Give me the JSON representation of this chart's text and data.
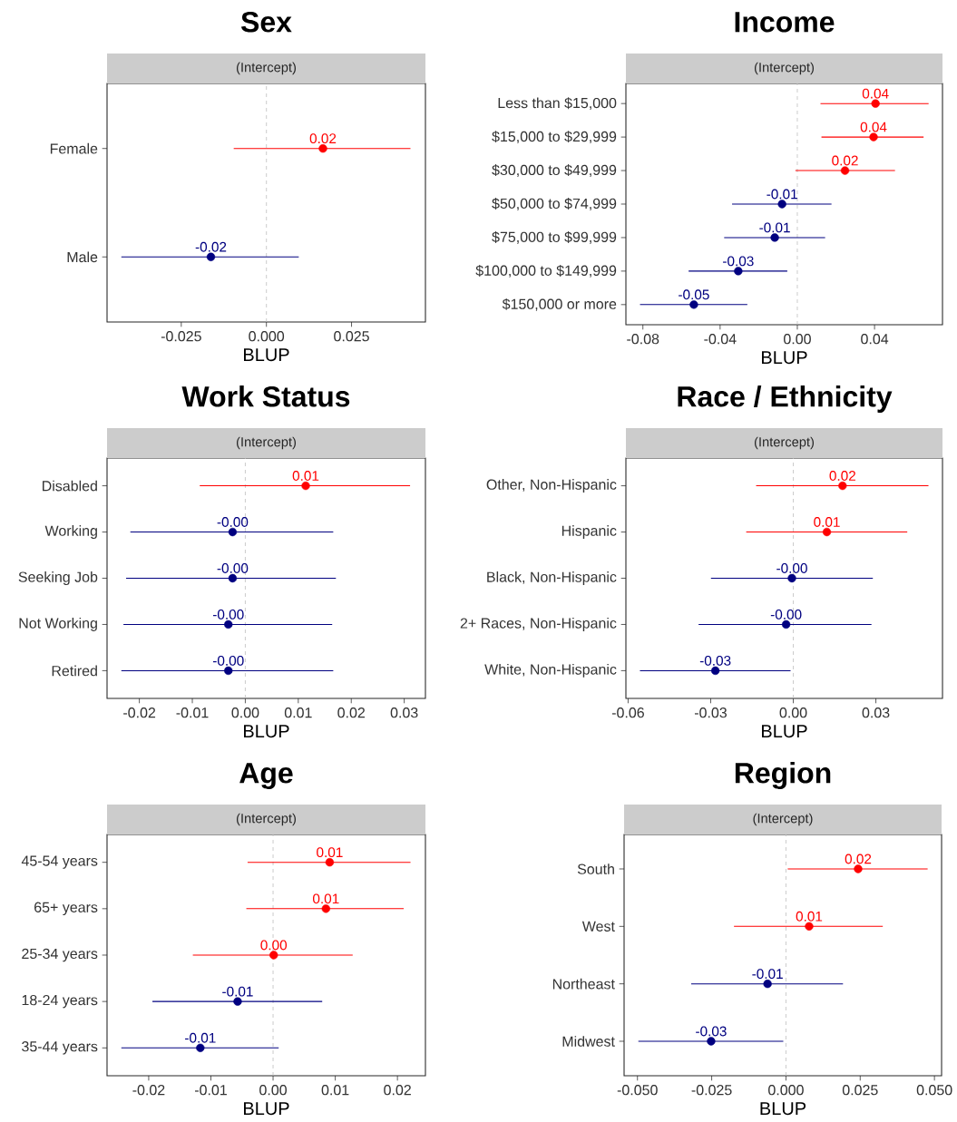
{
  "chart_data": [
    {
      "type": "scatter",
      "orientation": "horizontal",
      "title": "Sex",
      "subtitle": "(Intercept)",
      "xlabel": "BLUP",
      "marker": "circle",
      "categories": [
        "Female",
        "Male"
      ],
      "values": [
        0.0166,
        -0.0163
      ],
      "errors": [
        [
          -0.0096,
          0.0423
        ],
        [
          -0.0426,
          0.0095
        ]
      ],
      "colors": [
        "#ff0000",
        "#000080"
      ],
      "value_labels": [
        "0.02",
        "-0.02"
      ],
      "xlim": [
        -0.0468,
        0.0467
      ],
      "xticks": [
        -0.025,
        {
          "value": 0,
          "label": "0.000"
        },
        0.025
      ],
      "ref_lines": [
        {
          "axis": "x",
          "value": 0,
          "color": "#bebebe",
          "line_style": "dashed"
        }
      ]
    },
    {
      "type": "scatter",
      "orientation": "horizontal",
      "title": "Income",
      "subtitle": "(Intercept)",
      "xlabel": "BLUP",
      "marker": "circle",
      "categories": [
        "Less than $15,000",
        "$15,000 to $29,999",
        "$30,000 to $49,999",
        "$50,000 to $74,999",
        "$75,000 to $99,999",
        "$100,000 to $149,999",
        "$150,000 or more"
      ],
      "values": [
        0.0405,
        0.0395,
        0.0247,
        -0.0079,
        -0.0117,
        -0.0306,
        -0.0536
      ],
      "errors": [
        [
          0.012,
          0.068
        ],
        [
          0.0125,
          0.0654
        ],
        [
          -0.001,
          0.0506
        ],
        [
          -0.0338,
          0.0177
        ],
        [
          -0.0379,
          0.0144
        ],
        [
          -0.0563,
          -0.0052
        ],
        [
          -0.0815,
          -0.0259
        ]
      ],
      "colors": [
        "#ff0000",
        "#ff0000",
        "#ff0000",
        "#000080",
        "#000080",
        "#000080",
        "#000080"
      ],
      "value_labels": [
        "0.04",
        "0.04",
        "0.02",
        "-0.01",
        "-0.01",
        "-0.03",
        "-0.05"
      ],
      "xlim": [
        -0.0888,
        0.0752
      ],
      "xticks": [
        -0.08,
        -0.04,
        {
          "value": 0,
          "label": "0.00"
        },
        0.04
      ],
      "ref_lines": [
        {
          "axis": "x",
          "value": 0,
          "color": "#bebebe",
          "line_style": "dashed"
        }
      ]
    },
    {
      "type": "scatter",
      "orientation": "horizontal",
      "title": "Work Status",
      "subtitle": "(Intercept)",
      "xlabel": "BLUP",
      "marker": "circle",
      "categories": [
        "Disabled",
        "Working",
        "Seeking Job",
        "Not Working",
        "Retired"
      ],
      "values": [
        0.0114,
        -0.0024,
        -0.0024,
        -0.0032,
        -0.0032
      ],
      "errors": [
        [
          -0.0086,
          0.0311
        ],
        [
          -0.0217,
          0.0166
        ],
        [
          -0.0225,
          0.0171
        ],
        [
          -0.023,
          0.0164
        ],
        [
          -0.0234,
          0.0166
        ]
      ],
      "colors": [
        "#ff0000",
        "#000080",
        "#000080",
        "#000080",
        "#000080"
      ],
      "value_labels": [
        "0.01",
        "-0.00",
        "-0.00",
        "-0.00",
        "-0.00"
      ],
      "xlim": [
        -0.0261,
        0.034
      ],
      "xticks": [
        -0.02,
        -0.01,
        {
          "value": 0,
          "label": "0.00"
        },
        0.01,
        0.02,
        0.03
      ],
      "ref_lines": [
        {
          "axis": "x",
          "value": 0,
          "color": "#bebebe",
          "line_style": "dashed"
        }
      ]
    },
    {
      "type": "scatter",
      "orientation": "horizontal",
      "title": "Race / Ethnicity",
      "subtitle": "(Intercept)",
      "xlabel": "BLUP",
      "marker": "circle",
      "categories": [
        "Other, Non-Hispanic",
        "Hispanic",
        "Black, Non-Hispanic",
        "2+ Races, Non-Hispanic",
        "White, Non-Hispanic"
      ],
      "values": [
        0.0179,
        0.0122,
        -0.0005,
        -0.0026,
        -0.0283
      ],
      "errors": [
        [
          -0.0135,
          0.0491
        ],
        [
          -0.0171,
          0.0414
        ],
        [
          -0.0299,
          0.0289
        ],
        [
          -0.0344,
          0.0284
        ],
        [
          -0.0557,
          -0.001
        ]
      ],
      "colors": [
        "#ff0000",
        "#ff0000",
        "#000080",
        "#000080",
        "#000080"
      ],
      "value_labels": [
        "0.02",
        "0.01",
        "-0.00",
        "-0.00",
        "-0.03"
      ],
      "xlim": [
        -0.0608,
        0.0542
      ],
      "xticks": [
        -0.06,
        -0.03,
        {
          "value": 0,
          "label": "0.00"
        },
        0.03
      ],
      "ref_lines": [
        {
          "axis": "x",
          "value": 0,
          "color": "#bebebe",
          "line_style": "dashed"
        }
      ]
    },
    {
      "type": "scatter",
      "orientation": "horizontal",
      "title": "Age",
      "subtitle": "(Intercept)",
      "xlabel": "BLUP",
      "marker": "circle",
      "categories": [
        "45-54 years",
        "65+ years",
        "25-34 years",
        "18-24 years",
        "35-44 years"
      ],
      "values": [
        0.0091,
        0.0085,
        0.0001,
        -0.0057,
        -0.0117
      ],
      "errors": [
        [
          -0.0041,
          0.0221
        ],
        [
          -0.0043,
          0.021
        ],
        [
          -0.0129,
          0.0128
        ],
        [
          -0.0194,
          0.0079
        ],
        [
          -0.0244,
          0.0009
        ]
      ],
      "colors": [
        "#ff0000",
        "#ff0000",
        "#ff0000",
        "#000080",
        "#000080"
      ],
      "value_labels": [
        "0.01",
        "0.01",
        "0.00",
        "-0.01",
        "-0.01"
      ],
      "xlim": [
        -0.0267,
        0.0245
      ],
      "xticks": [
        -0.02,
        -0.01,
        {
          "value": 0,
          "label": "0.00"
        },
        0.01,
        0.02
      ],
      "ref_lines": [
        {
          "axis": "x",
          "value": 0,
          "color": "#bebebe",
          "line_style": "dashed"
        }
      ]
    },
    {
      "type": "scatter",
      "orientation": "horizontal",
      "title": "Region",
      "subtitle": "(Intercept)",
      "xlabel": "BLUP",
      "marker": "circle",
      "categories": [
        "South",
        "West",
        "Northeast",
        "Midwest"
      ],
      "values": [
        0.0243,
        0.0078,
        -0.0062,
        -0.0252
      ],
      "errors": [
        [
          0.0006,
          0.0477
        ],
        [
          -0.0175,
          0.0326
        ],
        [
          -0.0319,
          0.0192
        ],
        [
          -0.0497,
          -0.0009
        ]
      ],
      "colors": [
        "#ff0000",
        "#ff0000",
        "#000080",
        "#000080"
      ],
      "value_labels": [
        "0.02",
        "0.01",
        "-0.01",
        "-0.03"
      ],
      "xlim": [
        -0.0545,
        0.0524
      ],
      "xticks": [
        {
          "value": -0.05,
          "label": "-0.050"
        },
        -0.025,
        {
          "value": 0,
          "label": "0.000"
        },
        0.025,
        {
          "value": 0.05,
          "label": "0.050"
        }
      ],
      "ref_lines": [
        {
          "axis": "x",
          "value": 0,
          "color": "#bebebe",
          "line_style": "dashed"
        }
      ]
    }
  ]
}
